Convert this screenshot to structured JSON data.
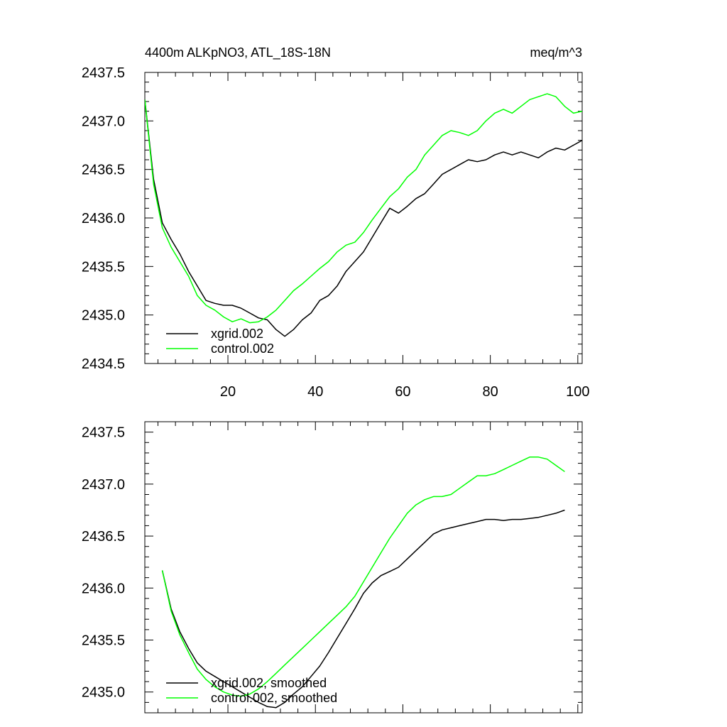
{
  "colors": {
    "xgrid": "#000000",
    "control": "#00ff00"
  },
  "chart_data": [
    {
      "type": "line",
      "title": "4400m ALKpNO3, ATL_18S-18N",
      "units": "meq/m^3",
      "xlim": [
        1,
        101
      ],
      "ylim": [
        2434.5,
        2437.5
      ],
      "x_ticks": [
        20,
        40,
        60,
        80,
        100
      ],
      "x_tick_labels": [
        "20",
        "40",
        "60",
        "80",
        "100"
      ],
      "y_ticks": [
        2434.5,
        2435.0,
        2435.5,
        2436.0,
        2436.5,
        2437.0,
        2437.5
      ],
      "y_tick_labels": [
        "2434.5",
        "2435.0",
        "2435.5",
        "2436.0",
        "2436.5",
        "2437.0",
        "2437.5"
      ],
      "legend": [
        "xgrid.002",
        "control.002"
      ],
      "legend_position": "bottom-left",
      "series": [
        {
          "name": "xgrid.002",
          "color": "#000000",
          "x": [
            1,
            3,
            5,
            7,
            9,
            11,
            13,
            15,
            17,
            19,
            21,
            23,
            25,
            27,
            29,
            31,
            33,
            35,
            37,
            39,
            41,
            43,
            45,
            47,
            49,
            51,
            53,
            55,
            57,
            59,
            61,
            63,
            65,
            67,
            69,
            71,
            73,
            75,
            77,
            79,
            81,
            83,
            85,
            87,
            89,
            91,
            93,
            95,
            97,
            99,
            101
          ],
          "values": [
            2437.22,
            2436.4,
            2435.95,
            2435.78,
            2435.63,
            2435.45,
            2435.3,
            2435.15,
            2435.12,
            2435.1,
            2435.1,
            2435.07,
            2435.02,
            2434.97,
            2434.95,
            2434.85,
            2434.78,
            2434.85,
            2434.95,
            2435.02,
            2435.15,
            2435.2,
            2435.3,
            2435.45,
            2435.55,
            2435.65,
            2435.8,
            2435.95,
            2436.1,
            2436.05,
            2436.12,
            2436.2,
            2436.25,
            2436.35,
            2436.45,
            2436.5,
            2436.55,
            2436.6,
            2436.58,
            2436.6,
            2436.65,
            2436.68,
            2436.65,
            2436.68,
            2436.65,
            2436.62,
            2436.68,
            2436.72,
            2436.7,
            2436.75,
            2436.8
          ]
        },
        {
          "name": "control.002",
          "color": "#00ff00",
          "x": [
            1,
            3,
            5,
            7,
            9,
            11,
            13,
            15,
            17,
            19,
            21,
            23,
            25,
            27,
            29,
            31,
            33,
            35,
            37,
            39,
            41,
            43,
            45,
            47,
            49,
            51,
            53,
            55,
            57,
            59,
            61,
            63,
            65,
            67,
            69,
            71,
            73,
            75,
            77,
            79,
            81,
            83,
            85,
            87,
            89,
            91,
            93,
            95,
            97,
            99,
            101
          ],
          "values": [
            2437.22,
            2436.35,
            2435.9,
            2435.7,
            2435.55,
            2435.4,
            2435.2,
            2435.1,
            2435.05,
            2434.98,
            2434.93,
            2434.96,
            2434.92,
            2434.93,
            2434.98,
            2435.05,
            2435.15,
            2435.25,
            2435.32,
            2435.4,
            2435.48,
            2435.55,
            2435.65,
            2435.72,
            2435.75,
            2435.85,
            2435.98,
            2436.1,
            2436.22,
            2436.3,
            2436.42,
            2436.5,
            2436.65,
            2436.75,
            2436.85,
            2436.9,
            2436.88,
            2436.85,
            2436.9,
            2437.0,
            2437.08,
            2437.12,
            2437.08,
            2437.15,
            2437.22,
            2437.25,
            2437.28,
            2437.25,
            2437.15,
            2437.08,
            2437.1
          ]
        }
      ]
    },
    {
      "type": "line",
      "title": "",
      "units": "",
      "xlim": [
        1,
        101
      ],
      "ylim": [
        2434.8,
        2437.6
      ],
      "x_ticks": [
        20,
        40,
        60,
        80,
        100
      ],
      "x_tick_labels": [],
      "y_ticks": [
        2435.0,
        2435.5,
        2436.0,
        2436.5,
        2437.0,
        2437.5
      ],
      "y_tick_labels": [
        "2435.0",
        "2435.5",
        "2436.0",
        "2436.5",
        "2437.0",
        "2437.5"
      ],
      "legend": [
        "xgrid.002, smoothed",
        "control.002, smoothed"
      ],
      "legend_position": "bottom-left",
      "series": [
        {
          "name": "xgrid.002, smoothed",
          "color": "#000000",
          "x": [
            5,
            7,
            9,
            11,
            13,
            15,
            17,
            19,
            21,
            23,
            25,
            27,
            29,
            31,
            33,
            35,
            37,
            39,
            41,
            43,
            45,
            47,
            49,
            51,
            53,
            55,
            57,
            59,
            61,
            63,
            65,
            67,
            69,
            71,
            73,
            75,
            77,
            79,
            81,
            83,
            85,
            87,
            89,
            91,
            93,
            95,
            97
          ],
          "values": [
            2436.17,
            2435.8,
            2435.58,
            2435.42,
            2435.28,
            2435.2,
            2435.15,
            2435.1,
            2435.05,
            2435.0,
            2434.95,
            2434.9,
            2434.86,
            2434.85,
            2434.9,
            2434.98,
            2435.05,
            2435.15,
            2435.25,
            2435.38,
            2435.52,
            2435.66,
            2435.8,
            2435.95,
            2436.05,
            2436.12,
            2436.16,
            2436.2,
            2436.28,
            2436.36,
            2436.44,
            2436.52,
            2436.56,
            2436.58,
            2436.6,
            2436.62,
            2436.64,
            2436.66,
            2436.66,
            2436.65,
            2436.66,
            2436.66,
            2436.67,
            2436.68,
            2436.7,
            2436.72,
            2436.75
          ]
        },
        {
          "name": "control.002, smoothed",
          "color": "#00ff00",
          "x": [
            5,
            7,
            9,
            11,
            13,
            15,
            17,
            19,
            21,
            23,
            25,
            27,
            29,
            31,
            33,
            35,
            37,
            39,
            41,
            43,
            45,
            47,
            49,
            51,
            53,
            55,
            57,
            59,
            61,
            63,
            65,
            67,
            69,
            71,
            73,
            75,
            77,
            79,
            81,
            83,
            85,
            87,
            89,
            91,
            93,
            95,
            97
          ],
          "values": [
            2436.17,
            2435.78,
            2435.55,
            2435.38,
            2435.22,
            2435.12,
            2435.05,
            2435.0,
            2434.97,
            2434.96,
            2434.98,
            2435.03,
            2435.1,
            2435.18,
            2435.26,
            2435.34,
            2435.42,
            2435.5,
            2435.58,
            2435.66,
            2435.74,
            2435.82,
            2435.92,
            2436.06,
            2436.2,
            2436.34,
            2436.48,
            2436.6,
            2436.72,
            2436.8,
            2436.85,
            2436.88,
            2436.88,
            2436.9,
            2436.96,
            2437.02,
            2437.08,
            2437.08,
            2437.1,
            2437.14,
            2437.18,
            2437.22,
            2437.26,
            2437.26,
            2437.24,
            2437.18,
            2437.12
          ]
        }
      ]
    }
  ]
}
